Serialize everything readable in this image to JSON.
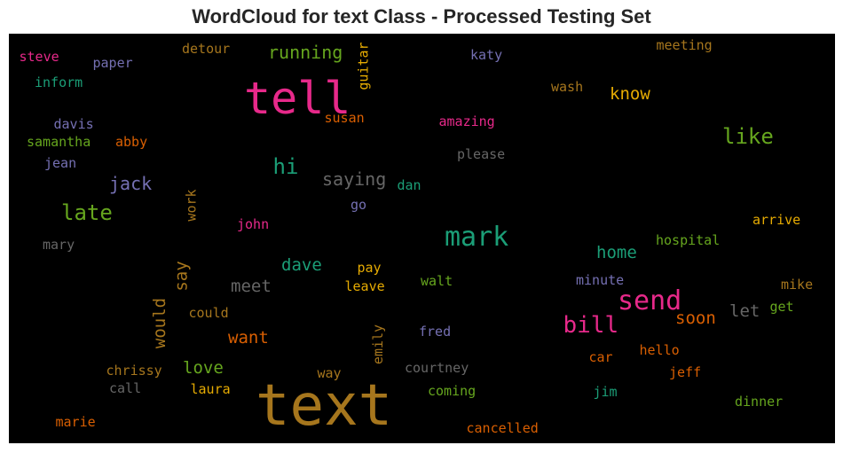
{
  "title": "WordCloud for text Class - Processed Testing Set",
  "palette": {
    "background": "#000000",
    "teal": "#1b9e77",
    "orange": "#d95f02",
    "purple": "#7570b3",
    "pink": "#e7298a",
    "green": "#66a61e",
    "gold": "#e6ab02",
    "brown": "#a6761d",
    "gray": "#666666"
  },
  "words": [
    {
      "text": "text",
      "color": "#a6761d",
      "weight": 10
    },
    {
      "text": "tell",
      "color": "#e7298a",
      "weight": 8
    },
    {
      "text": "mark",
      "color": "#1b9e77",
      "weight": 6
    },
    {
      "text": "send",
      "color": "#e7298a",
      "weight": 6
    },
    {
      "text": "bill",
      "color": "#e7298a",
      "weight": 5
    },
    {
      "text": "like",
      "color": "#66a61e",
      "weight": 5
    },
    {
      "text": "late",
      "color": "#66a61e",
      "weight": 5
    },
    {
      "text": "hi",
      "color": "#1b9e77",
      "weight": 5
    },
    {
      "text": "would",
      "color": "#a6761d",
      "weight": 4
    },
    {
      "text": "jack",
      "color": "#7570b3",
      "weight": 4
    },
    {
      "text": "saying",
      "color": "#666666",
      "weight": 4
    },
    {
      "text": "running",
      "color": "#66a61e",
      "weight": 4
    },
    {
      "text": "know",
      "color": "#e6ab02",
      "weight": 4
    },
    {
      "text": "home",
      "color": "#1b9e77",
      "weight": 4
    },
    {
      "text": "meet",
      "color": "#666666",
      "weight": 4
    },
    {
      "text": "dave",
      "color": "#1b9e77",
      "weight": 4
    },
    {
      "text": "want",
      "color": "#d95f02",
      "weight": 4
    },
    {
      "text": "love",
      "color": "#66a61e",
      "weight": 4
    },
    {
      "text": "soon",
      "color": "#d95f02",
      "weight": 4
    },
    {
      "text": "let",
      "color": "#666666",
      "weight": 4
    },
    {
      "text": "say",
      "color": "#a6761d",
      "weight": 4
    },
    {
      "text": "steve",
      "color": "#e7298a",
      "weight": 2
    },
    {
      "text": "paper",
      "color": "#7570b3",
      "weight": 2
    },
    {
      "text": "detour",
      "color": "#a6761d",
      "weight": 2
    },
    {
      "text": "guitar",
      "color": "#e6ab02",
      "weight": 2
    },
    {
      "text": "katy",
      "color": "#7570b3",
      "weight": 2
    },
    {
      "text": "meeting",
      "color": "#a6761d",
      "weight": 2
    },
    {
      "text": "inform",
      "color": "#1b9e77",
      "weight": 2
    },
    {
      "text": "wash",
      "color": "#a6761d",
      "weight": 2
    },
    {
      "text": "susan",
      "color": "#d95f02",
      "weight": 2
    },
    {
      "text": "amazing",
      "color": "#e7298a",
      "weight": 2
    },
    {
      "text": "davis",
      "color": "#7570b3",
      "weight": 2
    },
    {
      "text": "samantha",
      "color": "#66a61e",
      "weight": 2
    },
    {
      "text": "abby",
      "color": "#d95f02",
      "weight": 2
    },
    {
      "text": "please",
      "color": "#666666",
      "weight": 2
    },
    {
      "text": "jean",
      "color": "#7570b3",
      "weight": 2
    },
    {
      "text": "dan",
      "color": "#1b9e77",
      "weight": 2
    },
    {
      "text": "work",
      "color": "#a6761d",
      "weight": 2
    },
    {
      "text": "go",
      "color": "#7570b3",
      "weight": 2
    },
    {
      "text": "john",
      "color": "#e7298a",
      "weight": 2
    },
    {
      "text": "arrive",
      "color": "#e6ab02",
      "weight": 2
    },
    {
      "text": "mary",
      "color": "#666666",
      "weight": 2
    },
    {
      "text": "hospital",
      "color": "#66a61e",
      "weight": 2
    },
    {
      "text": "pay",
      "color": "#e6ab02",
      "weight": 2
    },
    {
      "text": "leave",
      "color": "#e6ab02",
      "weight": 2
    },
    {
      "text": "walt",
      "color": "#66a61e",
      "weight": 2
    },
    {
      "text": "minute",
      "color": "#7570b3",
      "weight": 2
    },
    {
      "text": "mike",
      "color": "#a6761d",
      "weight": 2
    },
    {
      "text": "could",
      "color": "#a6761d",
      "weight": 2
    },
    {
      "text": "get",
      "color": "#66a61e",
      "weight": 2
    },
    {
      "text": "emily",
      "color": "#a6761d",
      "weight": 2
    },
    {
      "text": "fred",
      "color": "#7570b3",
      "weight": 2
    },
    {
      "text": "hello",
      "color": "#d95f02",
      "weight": 2
    },
    {
      "text": "car",
      "color": "#d95f02",
      "weight": 2
    },
    {
      "text": "chrissy",
      "color": "#a6761d",
      "weight": 2
    },
    {
      "text": "courtney",
      "color": "#666666",
      "weight": 2
    },
    {
      "text": "jeff",
      "color": "#d95f02",
      "weight": 2
    },
    {
      "text": "way",
      "color": "#a6761d",
      "weight": 2
    },
    {
      "text": "call",
      "color": "#666666",
      "weight": 2
    },
    {
      "text": "laura",
      "color": "#e6ab02",
      "weight": 2
    },
    {
      "text": "coming",
      "color": "#66a61e",
      "weight": 2
    },
    {
      "text": "jim",
      "color": "#1b9e77",
      "weight": 2
    },
    {
      "text": "dinner",
      "color": "#66a61e",
      "weight": 2
    },
    {
      "text": "marie",
      "color": "#d95f02",
      "weight": 2
    },
    {
      "text": "cancelled",
      "color": "#d95f02",
      "weight": 2
    }
  ]
}
